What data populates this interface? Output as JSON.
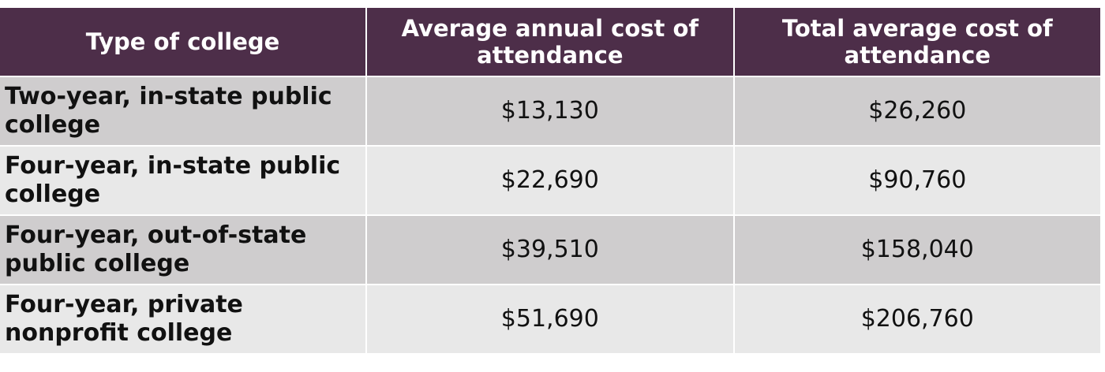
{
  "table": {
    "headers": [
      "Type of college",
      "Average annual cost of attendance",
      "Total average cost of attendance"
    ],
    "rows": [
      {
        "type": "Two-year, in-state public college",
        "annual": "$13,130",
        "total": "$26,260"
      },
      {
        "type": "Four-year, in-state public college",
        "annual": "$22,690",
        "total": "$90,760"
      },
      {
        "type": "Four-year, out-of-state public college",
        "annual": "$39,510",
        "total": "$158,040"
      },
      {
        "type": "Four-year, private nonprofit college",
        "annual": "$51,690",
        "total": "$206,760"
      }
    ]
  },
  "colors": {
    "header_bg": "#4d2e49",
    "row_odd": "#cfcdce",
    "row_even": "#e8e8e8"
  }
}
